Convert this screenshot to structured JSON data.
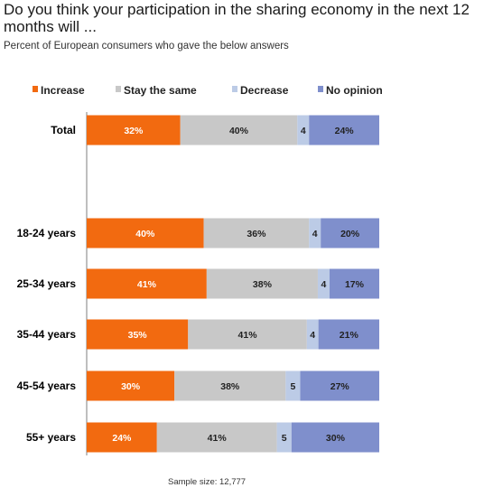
{
  "title": "Do you think your participation in the sharing economy in the next 12 months will ...",
  "subtitle": "Percent of European consumers who gave the below answers",
  "footnote": "Sample size: 12,777",
  "chart_data": {
    "type": "bar",
    "orientation": "horizontal",
    "stacked": true,
    "normalized": true,
    "categories": [
      "Total",
      "18-24 years",
      "25-34 years",
      "35-44 years",
      "45-54 years",
      "55+ years"
    ],
    "series": [
      {
        "name": "Increase",
        "color": "#f26a10",
        "values": [
          32,
          40,
          41,
          35,
          30,
          24
        ],
        "labels": [
          "32%",
          "40%",
          "41%",
          "35%",
          "30%",
          "24%"
        ],
        "label_color": "#ffffff"
      },
      {
        "name": "Stay the same",
        "color": "#c8c8c8",
        "values": [
          40,
          36,
          38,
          41,
          38,
          41
        ],
        "labels": [
          "40%",
          "36%",
          "38%",
          "41%",
          "38%",
          "41%"
        ],
        "label_color": "#222222"
      },
      {
        "name": "Decrease",
        "color": "#bccbe6",
        "values": [
          4,
          4,
          4,
          4,
          5,
          5
        ],
        "labels": [
          "4",
          "4",
          "4",
          "4",
          "5",
          "5"
        ],
        "label_color": "#222222"
      },
      {
        "name": "No opinion",
        "color": "#7f8fcc",
        "values": [
          24,
          20,
          17,
          21,
          27,
          30
        ],
        "labels": [
          "24%",
          "20%",
          "17%",
          "21%",
          "27%",
          "30%"
        ],
        "label_color": "#222222"
      }
    ],
    "legend_position": "top",
    "grid": false
  }
}
